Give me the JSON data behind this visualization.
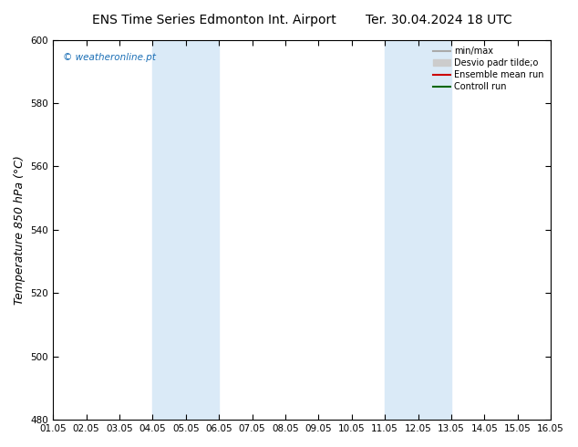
{
  "title_left": "ENS Time Series Edmonton Int. Airport",
  "title_right": "Ter. 30.04.2024 18 UTC",
  "ylabel": "Temperature 850 hPa (°C)",
  "ylim": [
    480,
    600
  ],
  "yticks": [
    480,
    500,
    520,
    540,
    560,
    580,
    600
  ],
  "xtick_labels": [
    "01.05",
    "02.05",
    "03.05",
    "04.05",
    "05.05",
    "06.05",
    "07.05",
    "08.05",
    "09.05",
    "10.05",
    "11.05",
    "12.05",
    "13.05",
    "14.05",
    "15.05",
    "16.05"
  ],
  "shaded_bands": [
    {
      "xstart": 3,
      "xend": 5,
      "color": "#daeaf7"
    },
    {
      "xstart": 10,
      "xend": 12,
      "color": "#daeaf7"
    }
  ],
  "watermark": "© weatheronline.pt",
  "watermark_color": "#1a6eb5",
  "legend_items": [
    {
      "label": "min/max",
      "color": "#aaaaaa",
      "lw": 1.5,
      "type": "line"
    },
    {
      "label": "Desvio padr tilde;o",
      "color": "#cccccc",
      "lw": 8,
      "type": "patch"
    },
    {
      "label": "Ensemble mean run",
      "color": "#cc0000",
      "lw": 1.5,
      "type": "line"
    },
    {
      "label": "Controll run",
      "color": "#006600",
      "lw": 1.5,
      "type": "line"
    }
  ],
  "bg_color": "#ffffff",
  "tick_label_fontsize": 7.5,
  "axis_label_fontsize": 9,
  "title_fontsize": 10
}
